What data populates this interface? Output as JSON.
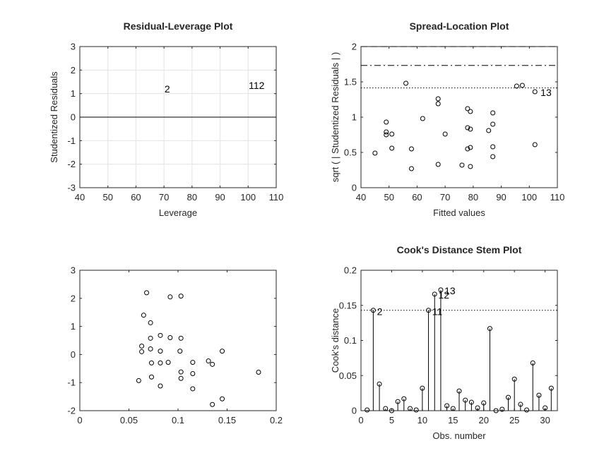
{
  "chart_data": [
    {
      "type": "scatter",
      "title": "Residual-Leverage Plot",
      "xlabel": "Leverage",
      "ylabel": "Studentized Residuals",
      "xlim": [
        40,
        110
      ],
      "ylim": [
        -3,
        3
      ],
      "xticks": [
        "40",
        "50",
        "60",
        "70",
        "80",
        "90",
        "100",
        "110"
      ],
      "yticks": [
        "-3",
        "-2",
        "-1",
        "0",
        "1",
        "2",
        "3"
      ],
      "grid": true,
      "reference_lines": [
        {
          "y": 0,
          "style": "solid"
        }
      ],
      "point_labels": [
        {
          "text": "2",
          "x": 70.2,
          "y": 1.2
        },
        {
          "text": "112",
          "x": 100.2,
          "y": 1.35
        }
      ],
      "points": []
    },
    {
      "type": "scatter",
      "title": "Spread-Location Plot",
      "xlabel": "Fitted values",
      "ylabel": "sqrt ( | Studentized Residuals | )",
      "xlim": [
        40,
        110
      ],
      "ylim": [
        0,
        2
      ],
      "xticks": [
        "40",
        "50",
        "60",
        "70",
        "80",
        "90",
        "100",
        "110"
      ],
      "yticks": [
        "0",
        "0.5",
        "1",
        "1.5",
        "2"
      ],
      "grid": false,
      "reference_lines": [
        {
          "y": 2.0,
          "style": "dashed"
        },
        {
          "y": 1.732,
          "style": "dashdot"
        },
        {
          "y": 1.414,
          "style": "dotted"
        }
      ],
      "point_labels": [
        {
          "text": "13",
          "x": 104,
          "y": 1.35
        }
      ],
      "points": [
        [
          45,
          0.49
        ],
        [
          49,
          0.93
        ],
        [
          49,
          0.79
        ],
        [
          49,
          0.75
        ],
        [
          51,
          0.76
        ],
        [
          51,
          0.56
        ],
        [
          56,
          1.48
        ],
        [
          58,
          0.55
        ],
        [
          58,
          0.27
        ],
        [
          62,
          0.98
        ],
        [
          67.5,
          1.26
        ],
        [
          67.5,
          1.19
        ],
        [
          67.5,
          0.33
        ],
        [
          70,
          0.76
        ],
        [
          76,
          0.32
        ],
        [
          78,
          1.12
        ],
        [
          78,
          0.85
        ],
        [
          78,
          0.55
        ],
        [
          79,
          1.08
        ],
        [
          79,
          0.83
        ],
        [
          79,
          0.57
        ],
        [
          79,
          0.3
        ],
        [
          85.5,
          0.81
        ],
        [
          87,
          1.06
        ],
        [
          87,
          0.9
        ],
        [
          87,
          0.58
        ],
        [
          87,
          0.44
        ],
        [
          95.5,
          1.44
        ],
        [
          97.5,
          1.45
        ],
        [
          102,
          1.36
        ],
        [
          102,
          0.61
        ]
      ]
    },
    {
      "type": "scatter",
      "title": "",
      "xlabel": "",
      "ylabel": "",
      "xlim": [
        0,
        0.2
      ],
      "ylim": [
        -2,
        3
      ],
      "xticks": [
        "0",
        "0.05",
        "0.1",
        "0.15",
        "0.2"
      ],
      "yticks": [
        "-2",
        "-1",
        "0",
        "1",
        "2",
        "3"
      ],
      "grid": false,
      "reference_lines": [],
      "point_labels": [],
      "points": [
        [
          0.068,
          2.2
        ],
        [
          0.092,
          2.05
        ],
        [
          0.103,
          2.08
        ],
        [
          0.065,
          1.4
        ],
        [
          0.072,
          1.13
        ],
        [
          0.072,
          0.58
        ],
        [
          0.082,
          0.68
        ],
        [
          0.092,
          0.6
        ],
        [
          0.103,
          0.58
        ],
        [
          0.063,
          0.3
        ],
        [
          0.063,
          0.1
        ],
        [
          0.072,
          0.2
        ],
        [
          0.082,
          0.12
        ],
        [
          0.102,
          0.12
        ],
        [
          0.145,
          0.12
        ],
        [
          0.073,
          -0.3
        ],
        [
          0.082,
          -0.3
        ],
        [
          0.09,
          -0.28
        ],
        [
          0.115,
          -0.28
        ],
        [
          0.131,
          -0.23
        ],
        [
          0.135,
          -0.35
        ],
        [
          0.103,
          -0.62
        ],
        [
          0.115,
          -0.68
        ],
        [
          0.073,
          -0.8
        ],
        [
          0.103,
          -0.85
        ],
        [
          0.06,
          -0.93
        ],
        [
          0.082,
          -1.12
        ],
        [
          0.115,
          -1.22
        ],
        [
          0.145,
          -1.58
        ],
        [
          0.135,
          -1.78
        ],
        [
          0.182,
          -0.63
        ]
      ]
    },
    {
      "type": "stem",
      "title": "Cook's Distance Stem Plot",
      "xlabel": "Obs. number",
      "ylabel": "Cook's distance",
      "xlim": [
        0,
        32
      ],
      "ylim": [
        0,
        0.2
      ],
      "xticks": [
        "0",
        "5",
        "10",
        "15",
        "20",
        "25",
        "30"
      ],
      "yticks": [
        "0",
        "0.05",
        "0.1",
        "0.15",
        "0.2"
      ],
      "grid": false,
      "reference_lines": [
        {
          "y": 0.143,
          "style": "dotted"
        }
      ],
      "point_labels": [
        {
          "text": "2",
          "x": 2.6,
          "y": 0.141
        },
        {
          "text": "11",
          "x": 11.6,
          "y": 0.141
        },
        {
          "text": "12",
          "x": 12.6,
          "y": 0.165
        },
        {
          "text": "13",
          "x": 13.6,
          "y": 0.171
        }
      ],
      "x": [
        1,
        2,
        3,
        4,
        5,
        6,
        7,
        8,
        9,
        10,
        11,
        12,
        13,
        14,
        15,
        16,
        17,
        18,
        19,
        20,
        21,
        22,
        23,
        24,
        25,
        26,
        27,
        28,
        29,
        30,
        31
      ],
      "values": [
        0.001,
        0.143,
        0.038,
        0.003,
        0.0,
        0.013,
        0.017,
        0.003,
        0.001,
        0.032,
        0.143,
        0.166,
        0.172,
        0.007,
        0.003,
        0.028,
        0.015,
        0.012,
        0.004,
        0.011,
        0.117,
        0.0,
        0.002,
        0.019,
        0.045,
        0.009,
        0.001,
        0.068,
        0.022,
        0.004,
        0.032
      ]
    }
  ]
}
